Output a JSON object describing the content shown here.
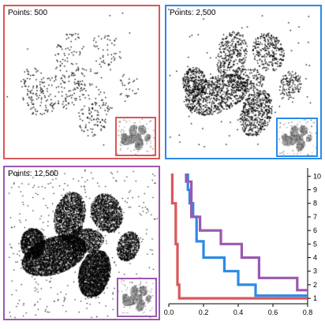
{
  "panels": [
    {
      "id": "p500",
      "label": "Points: 500",
      "color": "#d9575b",
      "point_count": 500
    },
    {
      "id": "p2500",
      "label": "Points: 2,500",
      "color": "#2b8ae6",
      "point_count": 2500
    },
    {
      "id": "p12500",
      "label": "Points: 12,500",
      "color": "#9a59b0",
      "point_count": 12500
    }
  ],
  "chart_data": {
    "type": "line",
    "title": "",
    "xlabel": "",
    "ylabel": "",
    "xlim": [
      0,
      0.8
    ],
    "ylim": [
      0.6,
      10.6
    ],
    "x_ticks": [
      0.0,
      0.2,
      0.4,
      0.6,
      0.8
    ],
    "y_ticks": [
      1,
      2,
      3,
      4,
      5,
      6,
      7,
      8,
      9,
      10
    ],
    "y_axis_side": "right",
    "step": true,
    "series": [
      {
        "color": "#d9575b",
        "x": [
          0.02,
          0.02,
          0.04,
          0.04,
          0.05,
          0.05,
          0.06,
          0.06,
          0.8
        ],
        "y": [
          10.2,
          8.0,
          8.0,
          5.0,
          5.0,
          2.0,
          2.0,
          1.0,
          1.0
        ]
      },
      {
        "color": "#2b8ae6",
        "x": [
          0.11,
          0.11,
          0.12,
          0.12,
          0.14,
          0.14,
          0.16,
          0.16,
          0.2,
          0.2,
          0.32,
          0.32,
          0.4,
          0.4,
          0.5,
          0.5,
          0.8
        ],
        "y": [
          10.2,
          9.0,
          9.0,
          8.0,
          8.0,
          7.0,
          7.0,
          5.2,
          5.2,
          4.0,
          4.0,
          3.0,
          3.0,
          2.0,
          2.0,
          1.2,
          1.2
        ]
      },
      {
        "color": "#9a59b0",
        "x": [
          0.1,
          0.1,
          0.13,
          0.13,
          0.18,
          0.18,
          0.3,
          0.3,
          0.42,
          0.42,
          0.52,
          0.52,
          0.74,
          0.74,
          0.8
        ],
        "y": [
          10.2,
          9.6,
          9.6,
          7.0,
          7.0,
          6.0,
          6.0,
          5.0,
          5.0,
          4.0,
          4.0,
          2.5,
          2.5,
          1.6,
          1.6
        ]
      }
    ]
  }
}
